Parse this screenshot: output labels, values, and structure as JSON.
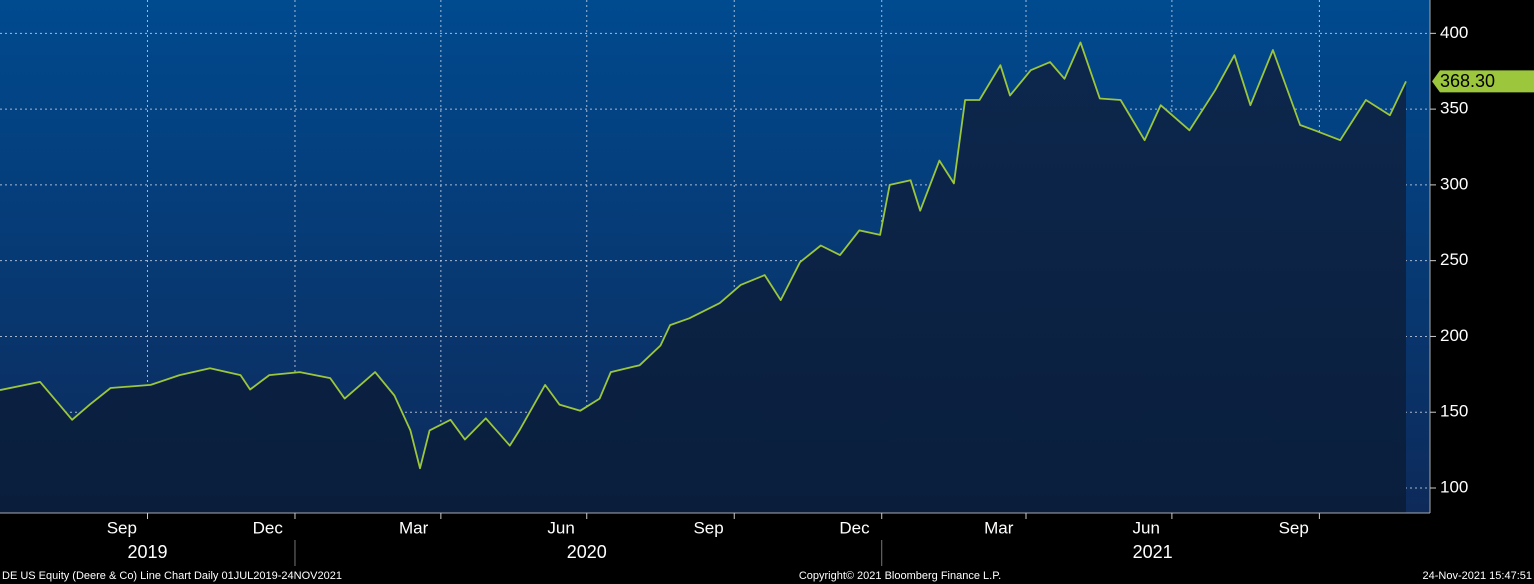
{
  "chart_data": {
    "type": "line",
    "series": [
      {
        "name": "DE US Equity",
        "color": "#9cc63c",
        "x": [
          "2019-07-01",
          "2019-07-26",
          "2019-08-07",
          "2019-08-15",
          "2019-08-26",
          "2019-09-08",
          "2019-10-03",
          "2019-10-21",
          "2019-11-09",
          "2019-11-28",
          "2019-12-04",
          "2019-12-16",
          "2020-01-04",
          "2020-01-23",
          "2020-02-01",
          "2020-02-20",
          "2020-03-03",
          "2020-03-13",
          "2020-03-19",
          "2020-03-25",
          "2020-04-07",
          "2020-04-16",
          "2020-04-29",
          "2020-05-14",
          "2020-05-20",
          "2020-06-05",
          "2020-06-14",
          "2020-06-27",
          "2020-07-09",
          "2020-07-16",
          "2020-08-03",
          "2020-08-16",
          "2020-08-22",
          "2020-09-03",
          "2020-09-22",
          "2020-10-05",
          "2020-10-20",
          "2020-10-30",
          "2020-11-11",
          "2020-11-24",
          "2020-12-06",
          "2020-12-18",
          "2020-12-31",
          "2021-01-06",
          "2021-01-19",
          "2021-01-25",
          "2021-02-06",
          "2021-02-15",
          "2021-02-22",
          "2021-03-03",
          "2021-03-16",
          "2021-03-22",
          "2021-04-04",
          "2021-04-16",
          "2021-04-25",
          "2021-05-05",
          "2021-05-17",
          "2021-05-30",
          "2021-06-14",
          "2021-06-24",
          "2021-07-12",
          "2021-07-28",
          "2021-08-09",
          "2021-08-19",
          "2021-09-02",
          "2021-09-19",
          "2021-09-28",
          "2021-10-14",
          "2021-10-30",
          "2021-11-14",
          "2021-11-24"
        ],
        "values": [
          164.6,
          170,
          155,
          145,
          155,
          166,
          168,
          174.5,
          179,
          174.5,
          165,
          174.5,
          176.5,
          172.5,
          159,
          176.5,
          161,
          138,
          113,
          138,
          145,
          132,
          146,
          128,
          138,
          168,
          155,
          151,
          159,
          176.5,
          181,
          194,
          207.5,
          212,
          222,
          234,
          240.5,
          224,
          249,
          260,
          253.7,
          270,
          267,
          300,
          303,
          283,
          316,
          301,
          356,
          356,
          379,
          359,
          375.7,
          381,
          370,
          394,
          357,
          356,
          329.5,
          352.6,
          336,
          362.5,
          385.6,
          352.6,
          389,
          339.5,
          336,
          329.5,
          356,
          346,
          368.3
        ]
      }
    ],
    "last_value_label": "368.30",
    "xlim": [
      "2019-07-01",
      "2021-12-09"
    ],
    "xticks": [
      {
        "value": "2019-09-15",
        "label": "Sep"
      },
      {
        "value": "2019-12-15",
        "label": "Dec"
      },
      {
        "value": "2020-03-15",
        "label": "Mar"
      },
      {
        "value": "2020-06-15",
        "label": "Jun"
      },
      {
        "value": "2020-09-15",
        "label": "Sep"
      },
      {
        "value": "2020-12-15",
        "label": "Dec"
      },
      {
        "value": "2021-03-15",
        "label": "Mar"
      },
      {
        "value": "2021-06-15",
        "label": "Jun"
      },
      {
        "value": "2021-09-15",
        "label": "Sep"
      }
    ],
    "xgrid": [
      "2019-10-01",
      "2020-01-01",
      "2020-04-01",
      "2020-07-01",
      "2020-10-01",
      "2021-01-01",
      "2021-04-01",
      "2021-07-01",
      "2021-10-01"
    ],
    "years": [
      {
        "value": "2019-10-01",
        "label": "2019"
      },
      {
        "value": "2020-07-01",
        "label": "2020"
      },
      {
        "value": "2021-06-19",
        "label": "2021"
      }
    ],
    "year_breaks": [
      "2020-01-01",
      "2021-01-01"
    ],
    "ylim": [
      83.5,
      422
    ],
    "yticks": [
      100,
      150,
      200,
      250,
      300,
      350,
      400
    ],
    "grid": true,
    "footer_left": "DE US Equity (Deere & Co) Line Chart  Daily 01JUL2019-24NOV2021",
    "footer_center": "Copyright© 2021 Bloomberg Finance L.P.",
    "footer_right": "24-Nov-2021 15:47:51"
  }
}
